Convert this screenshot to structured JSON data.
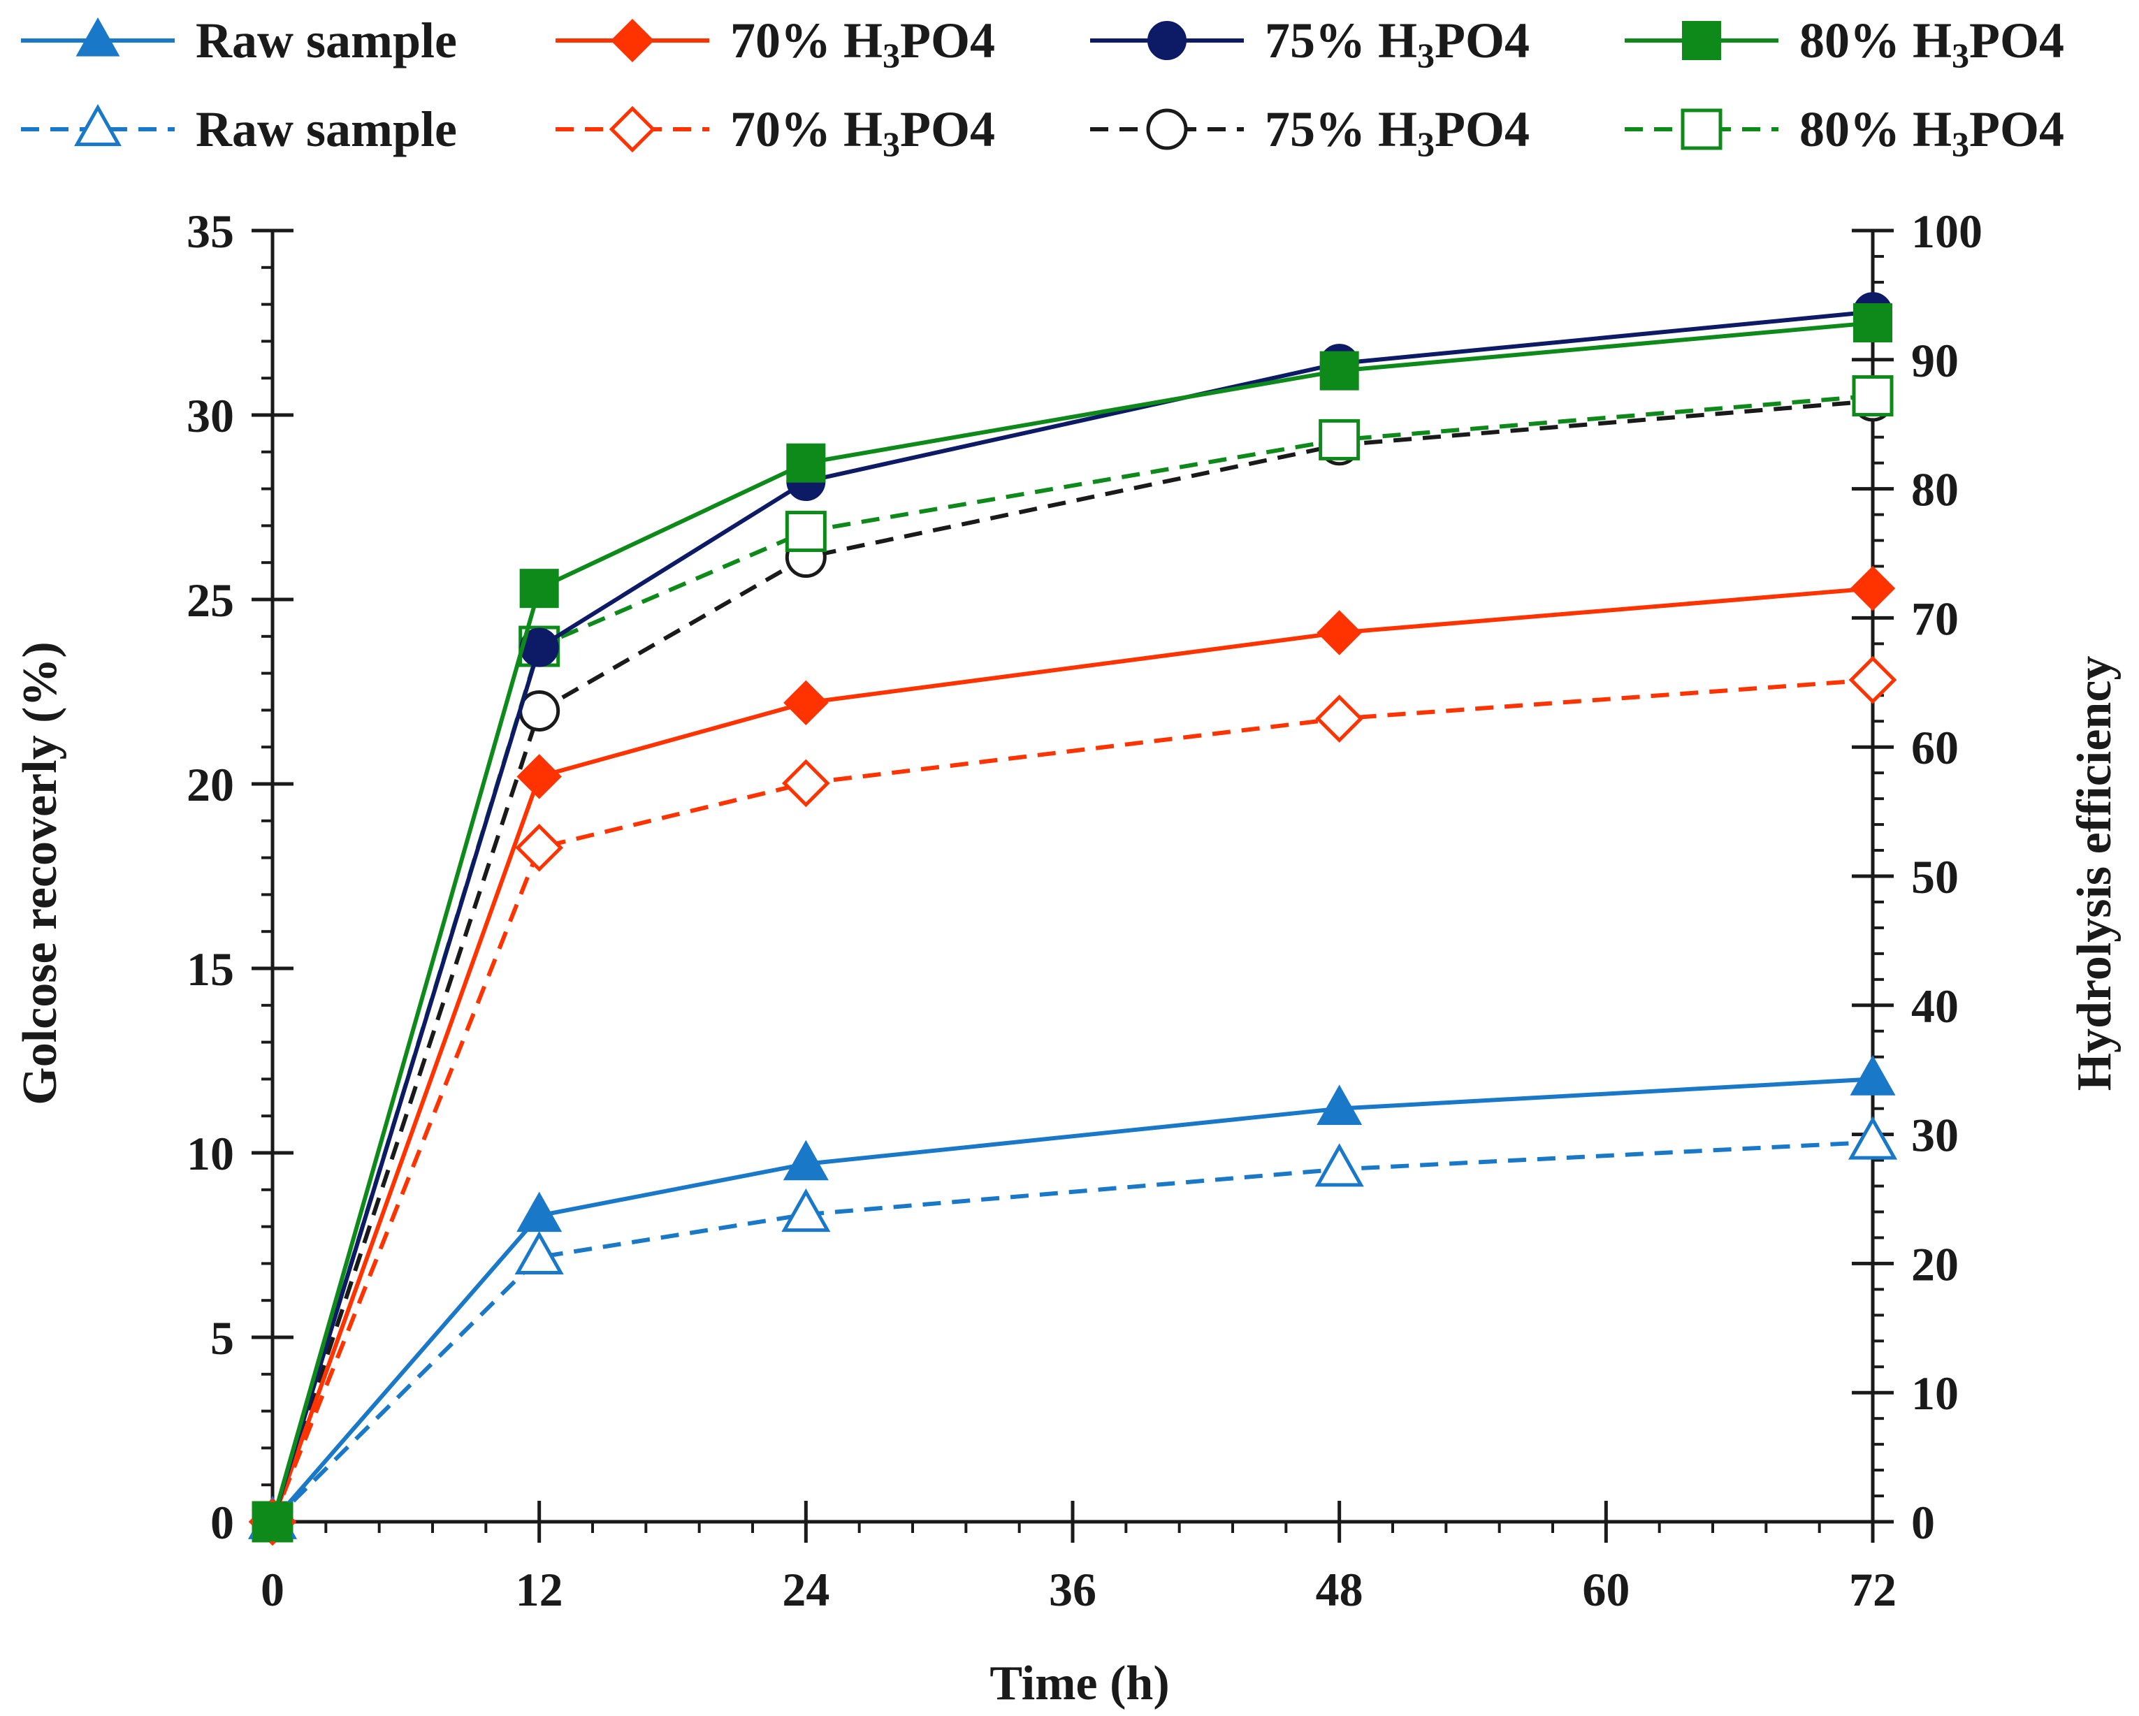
{
  "chart_data": {
    "type": "line",
    "xlabel": "Time (h)",
    "ylabel": "Golcose recoverly (%)",
    "y2label": "Hydrolysis efficiency",
    "x": [
      0,
      12,
      24,
      48,
      72
    ],
    "x_ticks": [
      "0",
      "12",
      "24",
      "36",
      "48",
      "60",
      "72"
    ],
    "x_tick_values": [
      0,
      12,
      24,
      36,
      48,
      60,
      72
    ],
    "xlim": [
      0,
      72
    ],
    "ylim": [
      0,
      35
    ],
    "y_ticks": [
      "0",
      "5",
      "10",
      "15",
      "20",
      "25",
      "30",
      "35"
    ],
    "y_tick_values": [
      0,
      5,
      10,
      15,
      20,
      25,
      30,
      35
    ],
    "y2lim": [
      0,
      100
    ],
    "y2_ticks": [
      "0",
      "10",
      "20",
      "30",
      "40",
      "50",
      "60",
      "70",
      "80",
      "90",
      "100"
    ],
    "y2_tick_values": [
      0,
      10,
      20,
      30,
      40,
      50,
      60,
      70,
      80,
      90,
      100
    ],
    "legend_position": "top",
    "series": [
      {
        "name": "Raw sample",
        "legend_main": "Raw sample",
        "legend_sub": "",
        "legend_tail": "",
        "axis": "left",
        "style": "solid",
        "marker": "triangle",
        "filled": true,
        "color": "#1a78c8",
        "values": [
          0,
          8.3,
          9.7,
          11.2,
          12.0
        ]
      },
      {
        "name": "70% H3PO4",
        "legend_main": "70% H",
        "legend_sub": "3",
        "legend_tail": "PO4",
        "axis": "left",
        "style": "solid",
        "marker": "diamond",
        "filled": true,
        "color": "#ff3300",
        "values": [
          0,
          20.2,
          22.2,
          24.1,
          25.3
        ]
      },
      {
        "name": "75% H3PO4",
        "legend_main": "75% H",
        "legend_sub": "3",
        "legend_tail": "PO4",
        "axis": "left",
        "style": "solid",
        "marker": "circle",
        "filled": true,
        "color": "#0d1a66",
        "values": [
          0,
          23.7,
          28.2,
          31.4,
          32.8
        ]
      },
      {
        "name": "80% H3PO4",
        "legend_main": "80% H",
        "legend_sub": "3",
        "legend_tail": "PO4",
        "axis": "left",
        "style": "solid",
        "marker": "square",
        "filled": true,
        "color": "#0e8a1a",
        "values": [
          0,
          25.3,
          28.7,
          31.2,
          32.5
        ]
      },
      {
        "name": "Raw sample",
        "legend_main": "Raw sample",
        "legend_sub": "",
        "legend_tail": "",
        "axis": "right",
        "style": "dashed",
        "marker": "triangle",
        "filled": false,
        "color": "#1a78c8",
        "values": [
          0,
          20.5,
          23.8,
          27.3,
          29.4
        ]
      },
      {
        "name": "70% H3PO4",
        "legend_main": "70% H",
        "legend_sub": "3",
        "legend_tail": "PO4",
        "axis": "right",
        "style": "dashed",
        "marker": "diamond",
        "filled": false,
        "color": "#ff3300",
        "values": [
          0,
          52.2,
          57.2,
          62.2,
          65.2
        ]
      },
      {
        "name": "75% H3PO4",
        "legend_main": "75% H",
        "legend_sub": "3",
        "legend_tail": "PO4",
        "axis": "right",
        "style": "dashed",
        "marker": "circle",
        "filled": false,
        "color": "#1a1a1a",
        "values": [
          0,
          62.8,
          74.7,
          83.4,
          86.8
        ]
      },
      {
        "name": "80% H3PO4",
        "legend_main": "80% H",
        "legend_sub": "3",
        "legend_tail": "PO4",
        "axis": "right",
        "style": "dashed",
        "marker": "square",
        "filled": false,
        "color": "#0e8a1a",
        "values": [
          0,
          67.8,
          76.7,
          83.8,
          87.2
        ]
      }
    ]
  }
}
